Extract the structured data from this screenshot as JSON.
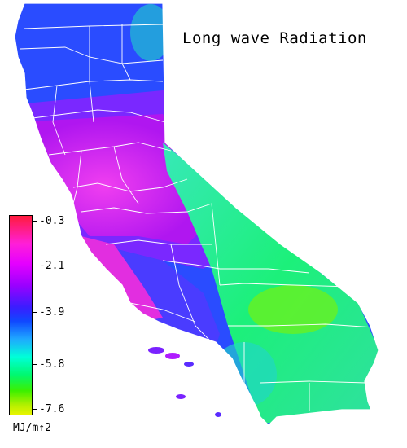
{
  "title": "Long wave Radiation",
  "colorbar": {
    "ticks": [
      "-0.3",
      "-2.1",
      "-3.9",
      "-5.8",
      "-7.6"
    ],
    "units": "MJ/m↑2"
  },
  "colors": {
    "north": "#2a4cff",
    "central": "#c81cf2",
    "coast": "#e22ee0",
    "sierra": "#5a2cff",
    "desert": "#1cf07a",
    "desert_bright": "#6ef21a",
    "teal": "#20d6c8",
    "border": "#ffffff"
  }
}
